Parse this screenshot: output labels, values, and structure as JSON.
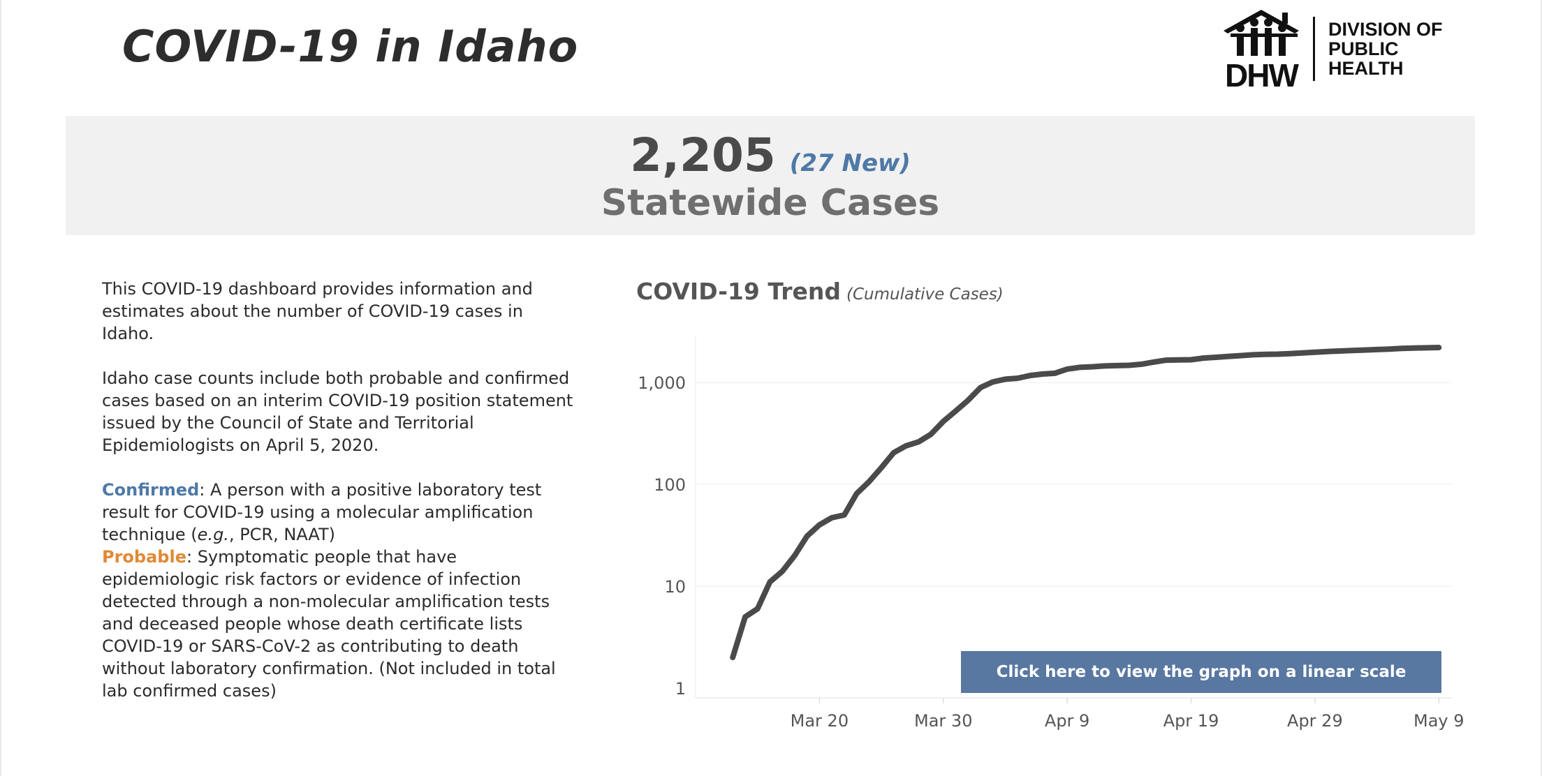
{
  "header": {
    "title": "COVID-19 in Idaho",
    "logo": {
      "wordmark": "DHW",
      "org_lines": [
        "DIVISION OF",
        "PUBLIC",
        "HEALTH"
      ],
      "icon": "family-house-icon"
    }
  },
  "summary": {
    "cases": "2,205",
    "new_cases": "(27 New)",
    "label": "Statewide Cases"
  },
  "info": {
    "paragraph1": "This COVID-19 dashboard provides information and estimates about the number of COVID-19 cases in Idaho.",
    "paragraph2": "Idaho case counts include both probable and confirmed cases based on an interim COVID-19 position statement issued by the Council of State and Territorial Epidemiologists on April 5, 2020.",
    "confirmed_term": "Confirmed",
    "confirmed_def_1": ": A person with a positive laboratory test result for COVID-19 using a molecular amplification technique (",
    "confirmed_eg": "e.g.",
    "confirmed_def_2": ", PCR, NAAT)",
    "probable_term": "Probable",
    "probable_def": ": Symptomatic people that have epidemiologic risk factors or evidence of infection detected through a non-molecular amplification tests and deceased people whose death certificate lists  COVID-19 or SARS-CoV-2 as contributing to death without laboratory confirmation. (Not included in total lab confirmed cases)"
  },
  "chart_title": {
    "main": "COVID-19 Trend",
    "sub": "(Cumulative Cases)"
  },
  "linear_button": "Click here to view the graph on a linear scale",
  "colors": {
    "line": "#4a4a4a",
    "accent_blue": "#4e79a7",
    "accent_orange": "#e08a35",
    "button": "#5877a1"
  },
  "chart_data": {
    "type": "line",
    "title": "COVID-19 Trend",
    "subtitle": "(Cumulative Cases)",
    "y_scale": "log",
    "ylim": [
      1,
      2500
    ],
    "xlim": [
      "2020-03-10",
      "2020-05-10"
    ],
    "y_ticks": [
      {
        "value": 1,
        "label": "1"
      },
      {
        "value": 10,
        "label": "10"
      },
      {
        "value": 100,
        "label": "100"
      },
      {
        "value": 1000,
        "label": "1,000"
      }
    ],
    "x_ticks": [
      {
        "date": "2020-03-20",
        "label": "Mar 20"
      },
      {
        "date": "2020-03-30",
        "label": "Mar 30"
      },
      {
        "date": "2020-04-09",
        "label": "Apr 9"
      },
      {
        "date": "2020-04-19",
        "label": "Apr 19"
      },
      {
        "date": "2020-04-29",
        "label": "Apr 29"
      },
      {
        "date": "2020-05-09",
        "label": "May 9"
      }
    ],
    "grid": "horizontal",
    "series": [
      {
        "x": [
          "2020-03-13",
          "2020-03-14",
          "2020-03-15",
          "2020-03-16",
          "2020-03-17",
          "2020-03-18",
          "2020-03-19",
          "2020-03-20",
          "2020-03-21",
          "2020-03-22",
          "2020-03-23",
          "2020-03-24",
          "2020-03-25",
          "2020-03-26",
          "2020-03-27",
          "2020-03-28",
          "2020-03-29",
          "2020-03-30",
          "2020-03-31",
          "2020-04-01",
          "2020-04-02",
          "2020-04-03",
          "2020-04-04",
          "2020-04-05",
          "2020-04-06",
          "2020-04-07",
          "2020-04-08",
          "2020-04-09",
          "2020-04-10",
          "2020-04-11",
          "2020-04-12",
          "2020-04-13",
          "2020-04-14",
          "2020-04-15",
          "2020-04-16",
          "2020-04-17",
          "2020-04-18",
          "2020-04-19",
          "2020-04-20",
          "2020-04-21",
          "2020-04-22",
          "2020-04-23",
          "2020-04-24",
          "2020-04-25",
          "2020-04-26",
          "2020-04-27",
          "2020-04-28",
          "2020-04-29",
          "2020-04-30",
          "2020-05-01",
          "2020-05-02",
          "2020-05-03",
          "2020-05-04",
          "2020-05-05",
          "2020-05-06",
          "2020-05-07",
          "2020-05-08",
          "2020-05-09"
        ],
        "values": [
          2,
          5,
          6,
          11,
          14,
          20,
          31,
          40,
          47,
          50,
          81,
          106,
          146,
          205,
          239,
          261,
          310,
          415,
          525,
          669,
          891,
          1013,
          1077,
          1101,
          1170,
          1210,
          1232,
          1353,
          1407,
          1426,
          1453,
          1464,
          1473,
          1512,
          1587,
          1655,
          1668,
          1672,
          1736,
          1766,
          1802,
          1836,
          1870,
          1887,
          1897,
          1917,
          1952,
          1984,
          2015,
          2035,
          2061,
          2081,
          2106,
          2127,
          2158,
          2178,
          2191,
          2205
        ]
      }
    ]
  }
}
